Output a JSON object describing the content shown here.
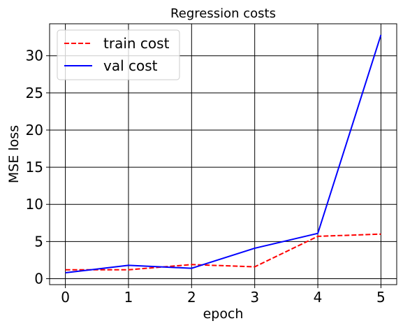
{
  "chart_data": {
    "type": "line",
    "title": "Regression costs",
    "xlabel": "epoch",
    "ylabel": "MSE loss",
    "x": [
      0,
      1,
      2,
      3,
      4,
      5
    ],
    "xlim": [
      -0.25,
      5.25
    ],
    "ylim": [
      -0.8,
      34.3
    ],
    "xticks": [
      "0",
      "1",
      "2",
      "3",
      "4",
      "5"
    ],
    "yticks": [
      "0",
      "5",
      "10",
      "15",
      "20",
      "25",
      "30"
    ],
    "grid": true,
    "legend_position": "top-left",
    "series": [
      {
        "name": "train cost",
        "values": [
          1.2,
          1.2,
          1.9,
          1.6,
          5.7,
          6.0
        ],
        "color": "#ff0000",
        "style": "dashed"
      },
      {
        "name": "val cost",
        "values": [
          0.8,
          1.8,
          1.4,
          4.1,
          6.1,
          32.8
        ],
        "color": "#0000ff",
        "style": "solid"
      }
    ]
  }
}
